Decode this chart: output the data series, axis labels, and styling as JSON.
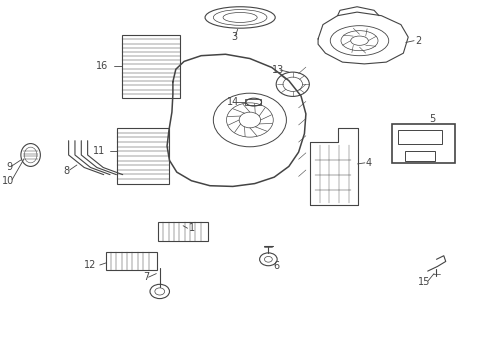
{
  "bg_color": "#ffffff",
  "line_color": "#444444",
  "lw": 0.8
}
